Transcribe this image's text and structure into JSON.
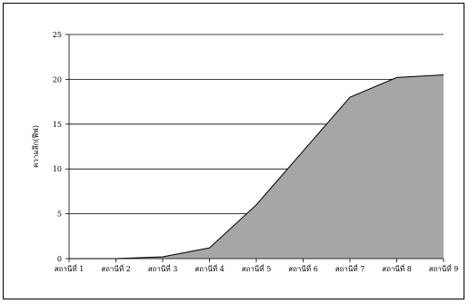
{
  "chart_data": {
    "type": "area",
    "title": "",
    "xlabel": "",
    "ylabel": "ความลึก(ฟีฟ)",
    "categories": [
      "สถานีที่ 1",
      "สถานีที่ 2",
      "สถานีที่ 3",
      "สถานีที่ 4",
      "สถานีที่ 5",
      "สถานีที่ 6",
      "สถานีที่ 7",
      "สถานีที่ 8",
      "สถานีที่ 9"
    ],
    "values": [
      0,
      0,
      0.2,
      1.2,
      6,
      12,
      18,
      20.2,
      20.5
    ],
    "ylim": [
      0,
      25
    ],
    "yticks": [
      0,
      5,
      10,
      15,
      20,
      25
    ],
    "grid": true,
    "legend": "none",
    "colors": {
      "fill": "#a6a6a6",
      "line": "#000000",
      "grid": "#000000"
    }
  }
}
